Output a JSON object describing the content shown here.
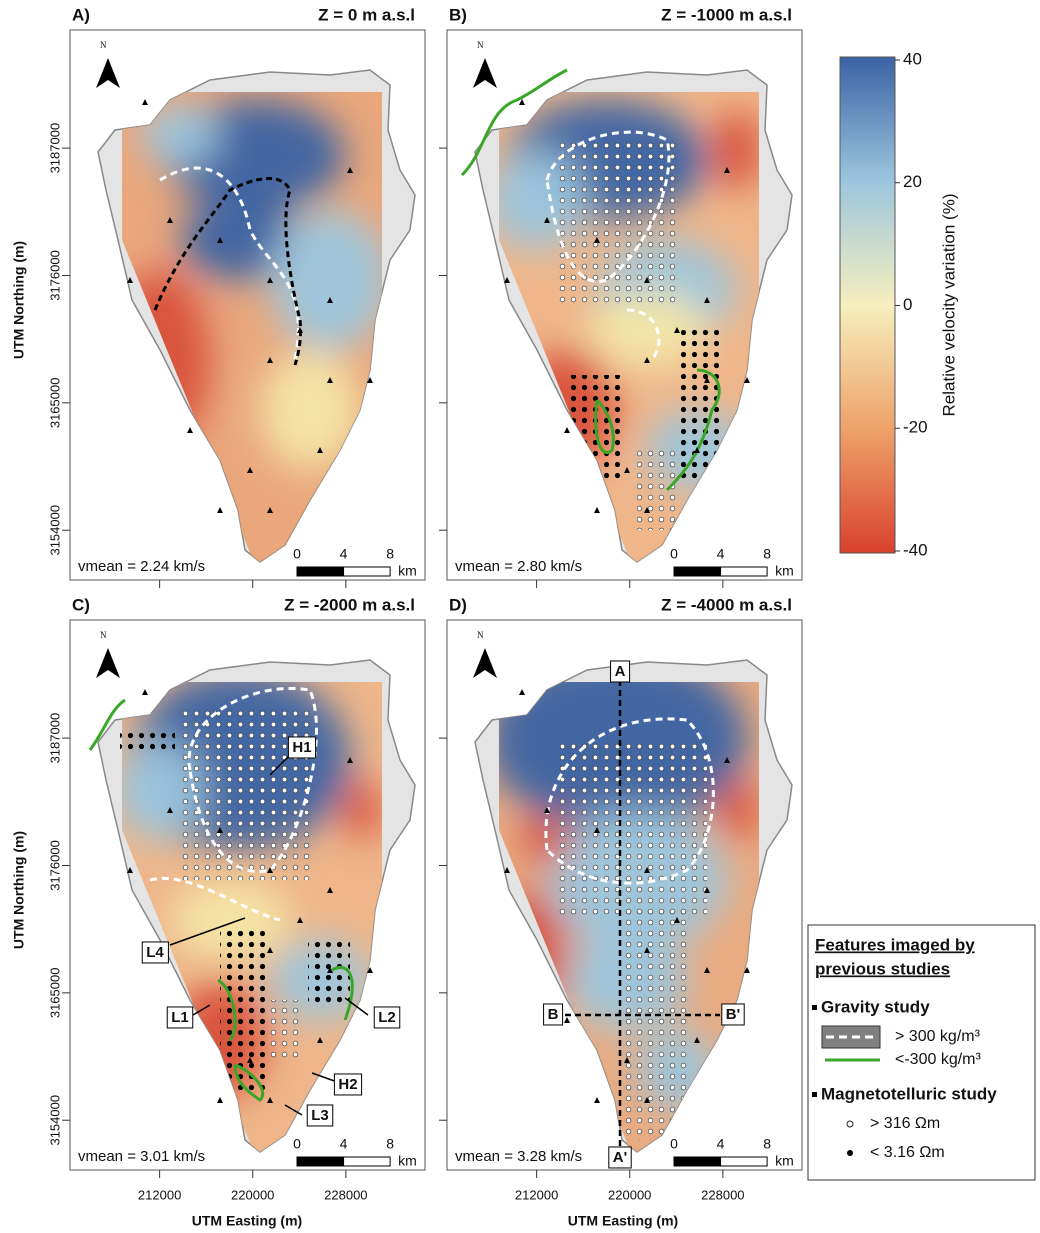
{
  "figure": {
    "panels": [
      {
        "label": "A)",
        "title": "Z = 0 m a.s.l",
        "vmean": "vmean = 2.24 km/s"
      },
      {
        "label": "B)",
        "title": "Z = -1000 m a.s.l",
        "vmean": "vmean = 2.80 km/s"
      },
      {
        "label": "C)",
        "title": "Z = -2000 m a.s.l",
        "vmean": "vmean = 3.01 km/s"
      },
      {
        "label": "D)",
        "title": "Z = -4000 m a.s.l",
        "vmean": "vmean = 3.28 km/s"
      }
    ],
    "north_label": "N",
    "scale_bar": {
      "ticks": [
        0,
        4,
        8
      ],
      "unit": "km"
    },
    "x_axis": {
      "label": "UTM Easting (m)",
      "lim": [
        204300,
        234800
      ],
      "ticks": [
        212000,
        220000,
        228000
      ]
    },
    "y_axis": {
      "label": "UTM Northing (m)",
      "lim": [
        3149700,
        3197200
      ],
      "ticks": [
        3187000,
        3176000,
        3165000,
        3154000
      ]
    },
    "colorbar": {
      "label": "Relative velocity variation (%)",
      "lim": [
        -40,
        40
      ],
      "ticks": [
        40,
        20,
        0,
        -20,
        -40
      ]
    },
    "annotations_c": [
      "H1",
      "L4",
      "L1",
      "L2",
      "H2",
      "L3"
    ],
    "annotations_d": [
      "A",
      "A'",
      "B",
      "B'"
    ],
    "legend": {
      "title_lines": [
        "Features imaged by",
        "previous studies"
      ],
      "sections": [
        {
          "title": "Gravity study",
          "items": [
            "> 300 kg/m³",
            "<-300 kg/m³"
          ]
        },
        {
          "title": "Magnetotelluric study",
          "items": [
            "> 316 Ωm",
            "< 3.16 Ωm"
          ]
        }
      ]
    }
  }
}
